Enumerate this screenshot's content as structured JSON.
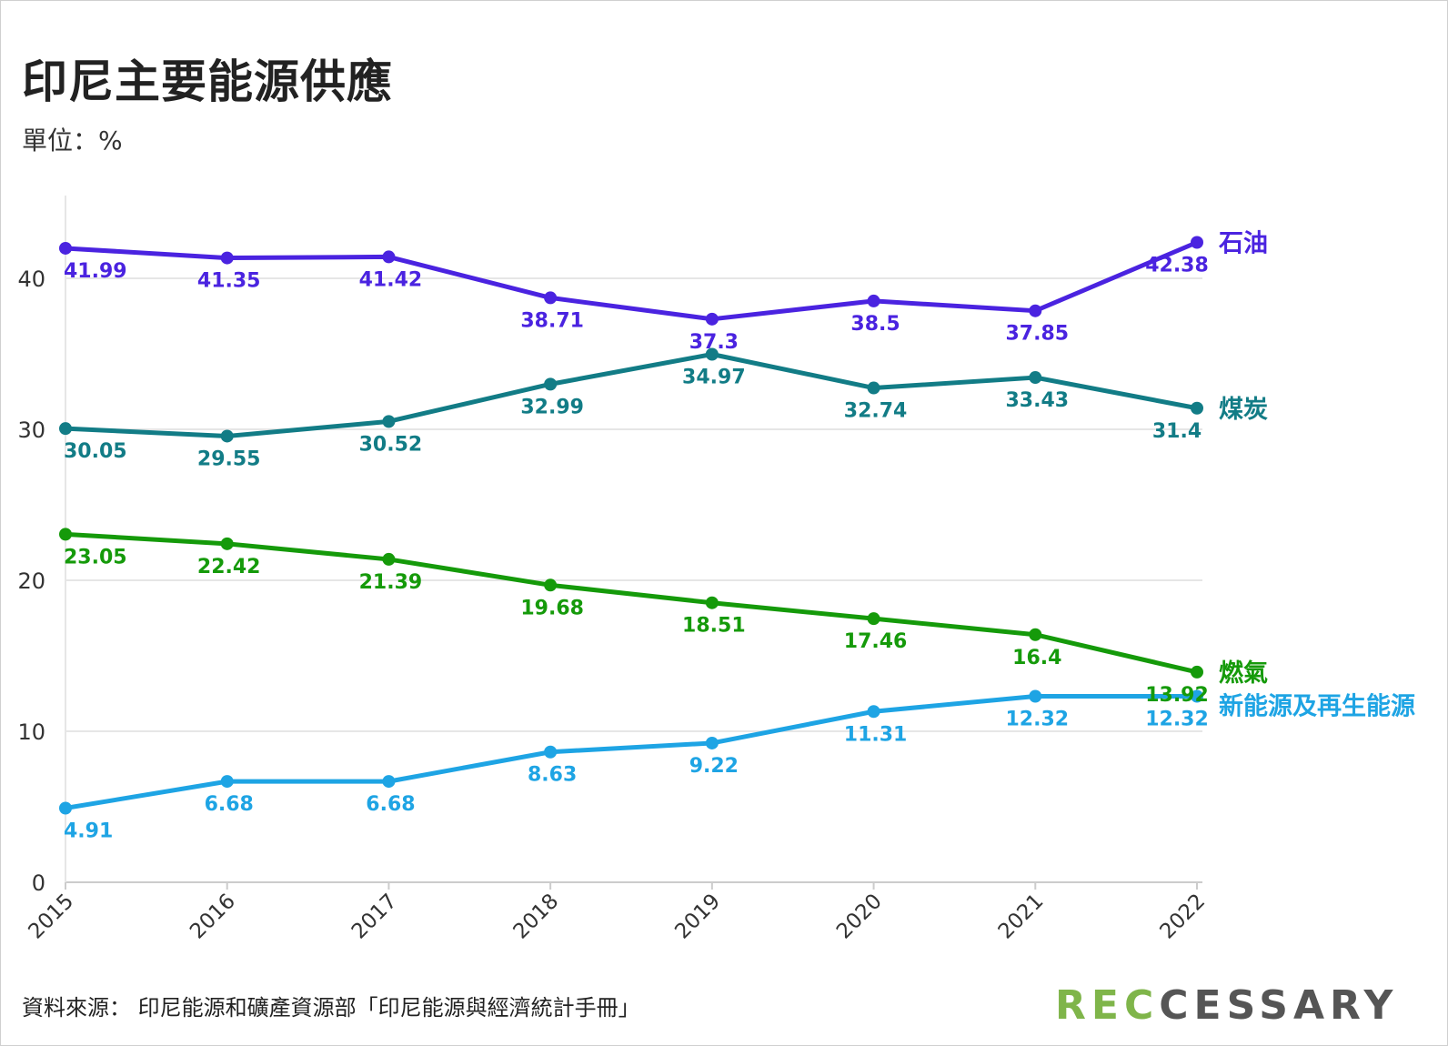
{
  "header": {
    "title": "印尼主要能源供應",
    "unit": "單位：%"
  },
  "footer": {
    "source": "資料來源： 印尼能源和礦產資源部「印尼能源與經濟統計手冊」",
    "logo_part1": "REC",
    "logo_part2": "CESSARY"
  },
  "chart_data": {
    "type": "line",
    "title": "印尼主要能源供應",
    "subtitle": "單位：%",
    "x": [
      "2015",
      "2016",
      "2017",
      "2018",
      "2019",
      "2020",
      "2021",
      "2022"
    ],
    "ylim": [
      0,
      46
    ],
    "yticks": [
      0,
      10,
      20,
      30,
      40
    ],
    "grid": true,
    "legend": "direct labels at right end of each line",
    "series": [
      {
        "name": "石油",
        "color": "#4a23e0",
        "values": [
          41.99,
          41.35,
          41.42,
          38.71,
          37.3,
          38.5,
          37.85,
          42.38
        ]
      },
      {
        "name": "煤炭",
        "color": "#127c86",
        "values": [
          30.05,
          29.55,
          30.52,
          32.99,
          34.97,
          32.74,
          33.43,
          31.4
        ]
      },
      {
        "name": "燃氣",
        "color": "#159a0a",
        "values": [
          23.05,
          22.42,
          21.39,
          19.68,
          18.51,
          17.46,
          16.4,
          13.92
        ]
      },
      {
        "name": "新能源及再生能源",
        "color": "#1ea4e4",
        "values": [
          4.91,
          6.68,
          6.68,
          8.63,
          9.22,
          11.31,
          12.32,
          12.32
        ]
      }
    ]
  }
}
